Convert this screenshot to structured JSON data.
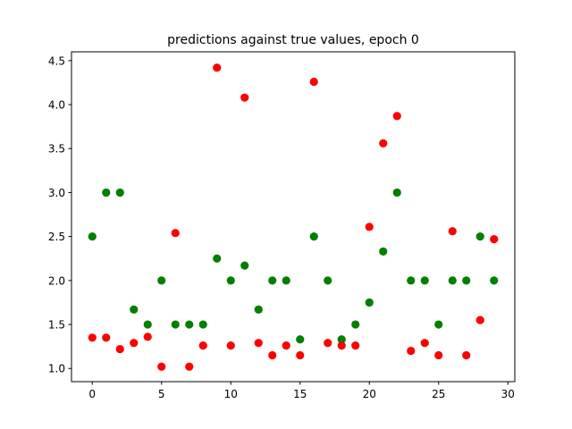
{
  "chart_data": {
    "type": "scatter",
    "title": "predictions against true values, epoch 0",
    "xlabel": "",
    "ylabel": "",
    "xlim": [
      -1.5,
      30.5
    ],
    "ylim": [
      0.85,
      4.6
    ],
    "xticks": [
      0,
      5,
      10,
      15,
      20,
      25,
      30
    ],
    "xtick_labels": [
      "0",
      "5",
      "10",
      "15",
      "20",
      "25",
      "30"
    ],
    "yticks": [
      1.0,
      1.5,
      2.0,
      2.5,
      3.0,
      3.5,
      4.0,
      4.5
    ],
    "ytick_labels": [
      "1.0",
      "1.5",
      "2.0",
      "2.5",
      "3.0",
      "3.5",
      "4.0",
      "4.5"
    ],
    "grid": false,
    "legend": "none",
    "series": [
      {
        "color": "#008000",
        "x": [
          0,
          1,
          2,
          3,
          4,
          5,
          6,
          7,
          8,
          9,
          10,
          11,
          12,
          13,
          14,
          15,
          16,
          17,
          18,
          19,
          20,
          21,
          22,
          23,
          24,
          25,
          26,
          27,
          28,
          29
        ],
        "y": [
          2.5,
          3.0,
          3.0,
          1.67,
          1.5,
          2.0,
          1.5,
          1.5,
          1.5,
          2.25,
          2.0,
          2.17,
          1.67,
          2.0,
          2.0,
          1.33,
          2.5,
          2.0,
          1.33,
          1.5,
          1.75,
          2.33,
          3.0,
          2.0,
          2.0,
          1.5,
          2.0,
          2.0,
          2.5,
          2.0
        ]
      },
      {
        "color": "#ff0000",
        "x": [
          0,
          1,
          2,
          3,
          4,
          5,
          6,
          7,
          8,
          9,
          10,
          11,
          12,
          13,
          14,
          15,
          16,
          17,
          18,
          19,
          20,
          21,
          22,
          23,
          24,
          25,
          26,
          27,
          28,
          29
        ],
        "y": [
          1.35,
          1.35,
          1.22,
          1.29,
          1.36,
          1.02,
          2.54,
          1.02,
          1.26,
          4.42,
          1.26,
          4.08,
          1.29,
          1.15,
          1.26,
          1.15,
          4.26,
          1.29,
          1.26,
          1.26,
          2.61,
          3.56,
          3.87,
          1.2,
          1.29,
          1.15,
          2.56,
          1.15,
          1.55,
          2.47
        ]
      }
    ]
  }
}
